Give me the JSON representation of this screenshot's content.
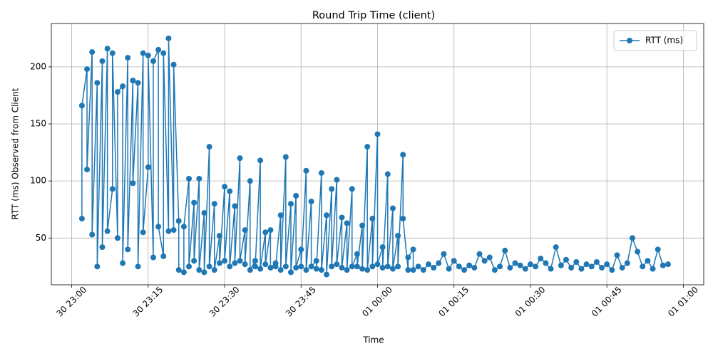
{
  "chart_data": {
    "type": "line",
    "title": "Round Trip Time (client)",
    "xlabel": "Time",
    "ylabel": "RTT (ms) Observed from Client",
    "x": [
      "30 23:02",
      "30 23:02",
      "30 23:03",
      "30 23:03",
      "30 23:04",
      "30 23:04",
      "30 23:05",
      "30 23:05",
      "30 23:06",
      "30 23:06",
      "30 23:07",
      "30 23:07",
      "30 23:08",
      "30 23:08",
      "30 23:09",
      "30 23:09",
      "30 23:10",
      "30 23:10",
      "30 23:11",
      "30 23:11",
      "30 23:12",
      "30 23:12",
      "30 23:13",
      "30 23:13",
      "30 23:14",
      "30 23:14",
      "30 23:15",
      "30 23:15",
      "30 23:16",
      "30 23:16",
      "30 23:17",
      "30 23:17",
      "30 23:18",
      "30 23:18",
      "30 23:19",
      "30 23:19",
      "30 23:20",
      "30 23:20",
      "30 23:21",
      "30 23:21",
      "30 23:22",
      "30 23:22",
      "30 23:23",
      "30 23:23",
      "30 23:24",
      "30 23:24",
      "30 23:25",
      "30 23:25",
      "30 23:26",
      "30 23:26",
      "30 23:27",
      "30 23:27",
      "30 23:28",
      "30 23:28",
      "30 23:29",
      "30 23:29",
      "30 23:30",
      "30 23:30",
      "30 23:31",
      "30 23:31",
      "30 23:32",
      "30 23:32",
      "30 23:33",
      "30 23:33",
      "30 23:34",
      "30 23:34",
      "30 23:35",
      "30 23:35",
      "30 23:36",
      "30 23:36",
      "30 23:37",
      "30 23:37",
      "30 23:38",
      "30 23:38",
      "30 23:39",
      "30 23:39",
      "30 23:40",
      "30 23:40",
      "30 23:41",
      "30 23:41",
      "30 23:42",
      "30 23:42",
      "30 23:43",
      "30 23:43",
      "30 23:44",
      "30 23:44",
      "30 23:45",
      "30 23:45",
      "30 23:46",
      "30 23:46",
      "30 23:47",
      "30 23:47",
      "30 23:48",
      "30 23:48",
      "30 23:49",
      "30 23:49",
      "30 23:50",
      "30 23:50",
      "30 23:51",
      "30 23:51",
      "30 23:52",
      "30 23:52",
      "30 23:53",
      "30 23:53",
      "30 23:54",
      "30 23:54",
      "30 23:55",
      "30 23:55",
      "30 23:56",
      "30 23:56",
      "30 23:57",
      "30 23:57",
      "30 23:58",
      "30 23:58",
      "30 23:59",
      "30 23:59",
      "01 00:00",
      "01 00:00",
      "01 00:01",
      "01 00:01",
      "01 00:02",
      "01 00:02",
      "01 00:03",
      "01 00:03",
      "01 00:04",
      "01 00:04",
      "01 00:05",
      "01 00:05",
      "01 00:06",
      "01 00:06",
      "01 00:07",
      "01 00:07",
      "01 00:08",
      "01 00:09",
      "01 00:10",
      "01 00:11",
      "01 00:12",
      "01 00:13",
      "01 00:14",
      "01 00:15",
      "01 00:16",
      "01 00:17",
      "01 00:18",
      "01 00:19",
      "01 00:20",
      "01 00:21",
      "01 00:22",
      "01 00:23",
      "01 00:24",
      "01 00:25",
      "01 00:26",
      "01 00:27",
      "01 00:28",
      "01 00:29",
      "01 00:30",
      "01 00:31",
      "01 00:32",
      "01 00:33",
      "01 00:34",
      "01 00:35",
      "01 00:36",
      "01 00:37",
      "01 00:38",
      "01 00:39",
      "01 00:40",
      "01 00:41",
      "01 00:42",
      "01 00:43",
      "01 00:44",
      "01 00:45",
      "01 00:46",
      "01 00:47",
      "01 00:48",
      "01 00:49",
      "01 00:50",
      "01 00:51",
      "01 00:52",
      "01 00:53",
      "01 00:54",
      "01 00:55",
      "01 00:56",
      "01 00:57"
    ],
    "series": [
      {
        "name": "RTT (ms)",
        "color": "#1f77b4",
        "values": [
          67,
          166,
          198,
          110,
          213,
          53,
          186,
          25,
          205,
          42,
          216,
          56,
          93,
          212,
          50,
          178,
          183,
          28,
          208,
          40,
          188,
          98,
          186,
          25,
          212,
          55,
          112,
          210,
          33,
          205,
          215,
          60,
          34,
          212,
          56,
          225,
          57,
          202,
          65,
          22,
          20,
          60,
          102,
          25,
          81,
          30,
          102,
          22,
          72,
          20,
          130,
          25,
          80,
          22,
          52,
          28,
          95,
          30,
          91,
          25,
          78,
          28,
          120,
          30,
          57,
          27,
          100,
          22,
          30,
          25,
          118,
          23,
          55,
          27,
          57,
          24,
          28,
          25,
          70,
          22,
          121,
          25,
          80,
          20,
          87,
          24,
          40,
          25,
          109,
          22,
          82,
          25,
          30,
          23,
          107,
          22,
          70,
          18,
          93,
          25,
          101,
          27,
          68,
          24,
          63,
          22,
          93,
          25,
          36,
          25,
          61,
          23,
          130,
          22,
          67,
          25,
          141,
          27,
          42,
          24,
          106,
          25,
          76,
          23,
          52,
          25,
          123,
          67,
          22,
          33,
          40,
          22,
          25,
          22,
          27,
          24,
          28,
          36,
          23,
          30,
          25,
          22,
          26,
          24,
          36,
          30,
          33,
          22,
          25,
          39,
          24,
          28,
          26,
          23,
          27,
          25,
          32,
          28,
          23,
          42,
          26,
          31,
          24,
          29,
          23,
          27,
          25,
          29,
          24,
          27,
          22,
          35,
          24,
          28,
          50,
          38,
          25,
          30,
          23,
          40,
          26,
          27
        ]
      }
    ],
    "xlim": [
      "30 22:56",
      "01 01:04"
    ],
    "xticks": [
      "30 23:00",
      "30 23:15",
      "30 23:30",
      "30 23:45",
      "01 00:00",
      "01 00:15",
      "01 00:30",
      "01 00:45",
      "01 01:00"
    ],
    "ylim": [
      9,
      238
    ],
    "yticks": [
      50,
      100,
      150,
      200
    ],
    "grid": true,
    "legend": "upper right"
  }
}
